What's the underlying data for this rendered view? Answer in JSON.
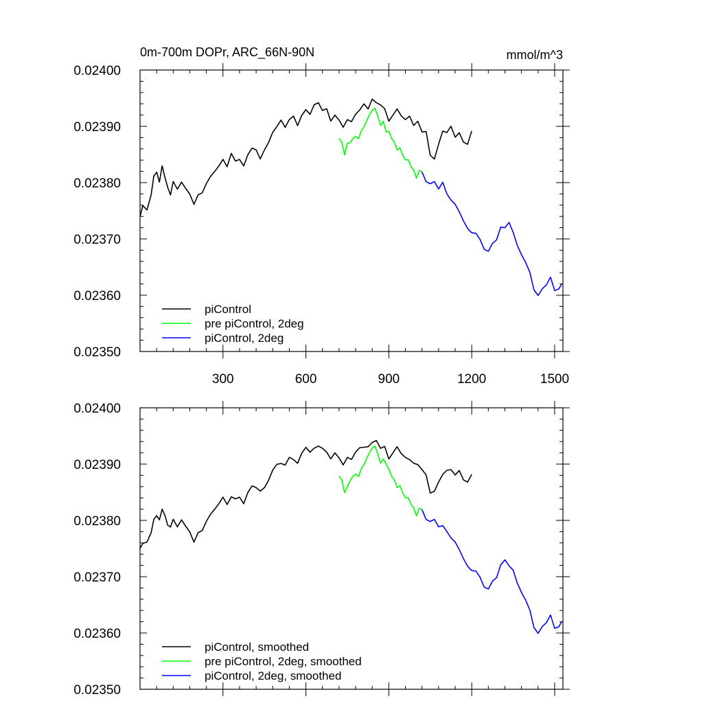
{
  "figure": {
    "title_left": "0m-700m DOPr, ARC_66N-90N",
    "title_right": "mmol/m^3"
  },
  "chart_data": [
    {
      "type": "line",
      "title": "0m-700m DOPr, ARC_66N-90N",
      "units": "mmol/m^3",
      "xlabel": "",
      "ylabel": "",
      "xlim": [
        0,
        1530
      ],
      "ylim": [
        0.0235,
        0.024
      ],
      "xticks": [
        300,
        600,
        900,
        1200,
        1500
      ],
      "xtick_labels": [
        "300",
        "600",
        "900",
        "1200",
        "1500"
      ],
      "yticks": [
        0.0235,
        0.0236,
        0.0237,
        0.0238,
        0.0239,
        0.024
      ],
      "ytick_labels": [
        "0.02350",
        "0.02360",
        "0.02370",
        "0.02380",
        "0.02390",
        "0.02400"
      ],
      "legend_position": "bottom-left",
      "series": [
        {
          "name": "piControl",
          "legend_label": "piControl",
          "color": "#000000",
          "x": [
            0,
            10,
            25,
            40,
            50,
            60,
            70,
            80,
            90,
            100,
            110,
            120,
            135,
            150,
            165,
            180,
            195,
            210,
            225,
            240,
            255,
            270,
            285,
            300,
            315,
            330,
            345,
            360,
            375,
            390,
            405,
            420,
            435,
            450,
            465,
            480,
            495,
            510,
            525,
            540,
            555,
            570,
            585,
            600,
            615,
            630,
            645,
            660,
            675,
            690,
            705,
            720,
            735,
            750,
            765,
            780,
            795,
            810,
            825,
            840,
            855,
            870,
            885,
            900,
            915,
            930,
            945,
            960,
            975,
            990,
            1005,
            1020,
            1035,
            1050,
            1065,
            1080,
            1095,
            1110,
            1125,
            1140,
            1155,
            1170,
            1185,
            1200
          ],
          "y": [
            0.02374,
            0.02376,
            0.02375,
            0.02378,
            0.02381,
            0.02382,
            0.0238,
            0.02383,
            0.02381,
            0.02379,
            0.02378,
            0.0238,
            0.02379,
            0.0238,
            0.02379,
            0.02378,
            0.02376,
            0.02378,
            0.02378,
            0.0238,
            0.02381,
            0.02382,
            0.02383,
            0.02384,
            0.02383,
            0.02385,
            0.02384,
            0.02384,
            0.02383,
            0.02385,
            0.02386,
            0.02386,
            0.02384,
            0.02386,
            0.02387,
            0.02389,
            0.0239,
            0.02391,
            0.0239,
            0.02391,
            0.02392,
            0.0239,
            0.02392,
            0.02393,
            0.02392,
            0.02394,
            0.02394,
            0.02393,
            0.02393,
            0.02391,
            0.02392,
            0.02391,
            0.0239,
            0.02391,
            0.02391,
            0.02392,
            0.02393,
            0.02394,
            0.02393,
            0.02395,
            0.02394,
            0.02394,
            0.02393,
            0.02391,
            0.02392,
            0.02393,
            0.02392,
            0.02391,
            0.02392,
            0.0239,
            0.02391,
            0.02389,
            0.02389,
            0.02385,
            0.02384,
            0.02387,
            0.02389,
            0.02389,
            0.0239,
            0.02388,
            0.02389,
            0.02387,
            0.02387,
            0.02389
          ]
        },
        {
          "name": "pre piControl, 2deg",
          "legend_label": "pre piControl, 2deg",
          "color": "#00ff00",
          "x": [
            720,
            730,
            740,
            750,
            760,
            770,
            780,
            790,
            800,
            810,
            820,
            830,
            840,
            850,
            860,
            870,
            880,
            890,
            900,
            910,
            920,
            930,
            940,
            950,
            960,
            970,
            980,
            990,
            1000,
            1010,
            1020
          ],
          "y": [
            0.02388,
            0.02387,
            0.02385,
            0.02387,
            0.02387,
            0.02388,
            0.02388,
            0.02388,
            0.02389,
            0.0239,
            0.02391,
            0.02392,
            0.02393,
            0.02393,
            0.02392,
            0.0239,
            0.02391,
            0.02389,
            0.02389,
            0.02388,
            0.02387,
            0.02386,
            0.02386,
            0.02385,
            0.02384,
            0.02384,
            0.02383,
            0.02382,
            0.02381,
            0.02382,
            0.02382
          ]
        },
        {
          "name": "piControl, 2deg",
          "legend_label": "piControl, 2deg",
          "color": "#0000ff",
          "x": [
            1020,
            1035,
            1050,
            1065,
            1080,
            1095,
            1110,
            1125,
            1140,
            1155,
            1170,
            1185,
            1200,
            1215,
            1230,
            1245,
            1260,
            1275,
            1290,
            1305,
            1320,
            1335,
            1350,
            1365,
            1380,
            1395,
            1410,
            1425,
            1440,
            1455,
            1470,
            1485,
            1500,
            1515,
            1525
          ],
          "y": [
            0.02382,
            0.0238,
            0.0238,
            0.0238,
            0.02379,
            0.0238,
            0.02378,
            0.02377,
            0.02376,
            0.02375,
            0.02373,
            0.02372,
            0.02371,
            0.02371,
            0.0237,
            0.02368,
            0.02368,
            0.02369,
            0.0237,
            0.02372,
            0.02372,
            0.02373,
            0.02371,
            0.02369,
            0.02367,
            0.02366,
            0.02364,
            0.02361,
            0.0236,
            0.02361,
            0.02362,
            0.02363,
            0.02361,
            0.02361,
            0.02362
          ]
        }
      ]
    },
    {
      "type": "line",
      "title": "",
      "xlabel": "",
      "ylabel": "",
      "xlim": [
        0,
        1530
      ],
      "ylim": [
        0.0235,
        0.024
      ],
      "xticks": [
        300,
        600,
        900,
        1200,
        1500
      ],
      "xtick_labels": [],
      "yticks": [
        0.0235,
        0.0236,
        0.0237,
        0.0238,
        0.0239,
        0.024
      ],
      "ytick_labels": [
        "0.02350",
        "0.02360",
        "0.02370",
        "0.02380",
        "0.02390",
        "0.02400"
      ],
      "legend_position": "bottom-left",
      "series": [
        {
          "name": "piControl, smoothed",
          "legend_label": "piControl, smoothed",
          "color": "#000000",
          "x": [
            0,
            10,
            25,
            40,
            50,
            60,
            70,
            80,
            90,
            100,
            110,
            120,
            135,
            150,
            165,
            180,
            195,
            210,
            225,
            240,
            255,
            270,
            285,
            300,
            315,
            330,
            345,
            360,
            375,
            390,
            405,
            420,
            435,
            450,
            465,
            480,
            495,
            510,
            525,
            540,
            555,
            570,
            585,
            600,
            615,
            630,
            645,
            660,
            675,
            690,
            705,
            720,
            735,
            750,
            765,
            780,
            795,
            810,
            825,
            840,
            855,
            870,
            885,
            900,
            915,
            930,
            945,
            960,
            975,
            990,
            1005,
            1020,
            1035,
            1050,
            1065,
            1080,
            1095,
            1110,
            1125,
            1140,
            1155,
            1170,
            1185,
            1200
          ],
          "y": [
            0.02375,
            0.02376,
            0.02376,
            0.02378,
            0.0238,
            0.02381,
            0.0238,
            0.02382,
            0.02381,
            0.02379,
            0.02379,
            0.0238,
            0.02379,
            0.0238,
            0.02379,
            0.02378,
            0.02376,
            0.02378,
            0.02378,
            0.0238,
            0.02381,
            0.02382,
            0.02383,
            0.02384,
            0.02383,
            0.02384,
            0.02384,
            0.02384,
            0.02383,
            0.02385,
            0.02386,
            0.02386,
            0.02385,
            0.02386,
            0.02387,
            0.02389,
            0.0239,
            0.0239,
            0.0239,
            0.02391,
            0.02391,
            0.0239,
            0.02392,
            0.02393,
            0.02392,
            0.02393,
            0.02393,
            0.02393,
            0.02392,
            0.02391,
            0.02392,
            0.02391,
            0.0239,
            0.02391,
            0.02391,
            0.02392,
            0.02393,
            0.02393,
            0.02393,
            0.02394,
            0.02394,
            0.02393,
            0.02393,
            0.02391,
            0.02392,
            0.02393,
            0.02392,
            0.02391,
            0.02391,
            0.0239,
            0.0239,
            0.02389,
            0.02388,
            0.02385,
            0.02385,
            0.02387,
            0.02388,
            0.02389,
            0.02389,
            0.02388,
            0.02389,
            0.02387,
            0.02387,
            0.02388
          ]
        },
        {
          "name": "pre piControl, 2deg, smoothed",
          "legend_label": "pre piControl, 2deg, smoothed",
          "color": "#00ff00",
          "x": [
            720,
            730,
            740,
            750,
            760,
            770,
            780,
            790,
            800,
            810,
            820,
            830,
            840,
            850,
            860,
            870,
            880,
            890,
            900,
            910,
            920,
            930,
            940,
            950,
            960,
            970,
            980,
            990,
            1000,
            1010,
            1020
          ],
          "y": [
            0.02388,
            0.02387,
            0.02385,
            0.02386,
            0.02387,
            0.02388,
            0.02388,
            0.02388,
            0.02389,
            0.0239,
            0.02391,
            0.02392,
            0.02393,
            0.02393,
            0.02392,
            0.0239,
            0.02391,
            0.0239,
            0.02389,
            0.02388,
            0.02387,
            0.02386,
            0.02386,
            0.02385,
            0.02384,
            0.02384,
            0.02383,
            0.02382,
            0.02381,
            0.02382,
            0.02382
          ]
        },
        {
          "name": "piControl, 2deg, smoothed",
          "legend_label": "piControl, 2deg, smoothed",
          "color": "#0000ff",
          "x": [
            1020,
            1035,
            1050,
            1065,
            1080,
            1095,
            1110,
            1125,
            1140,
            1155,
            1170,
            1185,
            1200,
            1215,
            1230,
            1245,
            1260,
            1275,
            1290,
            1305,
            1320,
            1335,
            1350,
            1365,
            1380,
            1395,
            1410,
            1425,
            1440,
            1455,
            1470,
            1485,
            1500,
            1515,
            1525
          ],
          "y": [
            0.02382,
            0.0238,
            0.0238,
            0.0238,
            0.02379,
            0.02379,
            0.02378,
            0.02377,
            0.02376,
            0.02375,
            0.02373,
            0.02372,
            0.02371,
            0.02371,
            0.0237,
            0.02368,
            0.02368,
            0.02369,
            0.0237,
            0.02372,
            0.02373,
            0.02372,
            0.02371,
            0.02369,
            0.02367,
            0.02366,
            0.02364,
            0.02361,
            0.0236,
            0.02361,
            0.02362,
            0.02363,
            0.02361,
            0.02361,
            0.02362
          ]
        }
      ]
    }
  ]
}
